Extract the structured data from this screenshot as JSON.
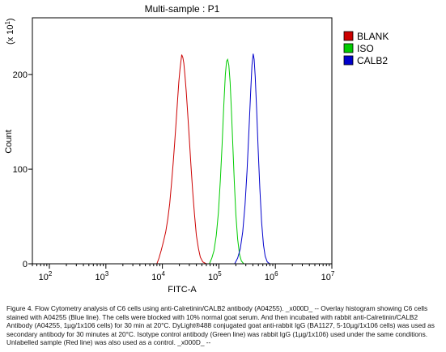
{
  "chart_data": {
    "type": "line",
    "title": "Multi-sample : P1",
    "xlabel": "FITC-A",
    "ylabel": "Count",
    "y_multiplier_label": "(x 10",
    "y_multiplier_exp": "1",
    "x_scale": "log",
    "x_range": [
      50,
      10000000
    ],
    "ylim": [
      0,
      260
    ],
    "x_ticks": [
      {
        "base": "10",
        "exp": "2",
        "value": 100
      },
      {
        "base": "10",
        "exp": "3",
        "value": 1000
      },
      {
        "base": "10",
        "exp": "4",
        "value": 10000
      },
      {
        "base": "10",
        "exp": "5",
        "value": 100000
      },
      {
        "base": "10",
        "exp": "6",
        "value": 1000000
      },
      {
        "base": "10",
        "exp": "7",
        "value": 10000000
      }
    ],
    "y_ticks": [
      0,
      100,
      200
    ],
    "legend_position": "top-right",
    "series": [
      {
        "name": "BLANK",
        "color": "#cc0000",
        "points": [
          [
            8000,
            0
          ],
          [
            8700,
            6
          ],
          [
            9500,
            14
          ],
          [
            10500,
            24
          ],
          [
            11500,
            34
          ],
          [
            12500,
            48
          ],
          [
            13500,
            64
          ],
          [
            14500,
            85
          ],
          [
            15500,
            106
          ],
          [
            16500,
            128
          ],
          [
            17500,
            150
          ],
          [
            18500,
            172
          ],
          [
            19500,
            192
          ],
          [
            20500,
            206
          ],
          [
            21500,
            216
          ],
          [
            22000,
            221
          ],
          [
            23000,
            218
          ],
          [
            24000,
            212
          ],
          [
            25000,
            200
          ],
          [
            26500,
            182
          ],
          [
            28000,
            160
          ],
          [
            30000,
            132
          ],
          [
            32000,
            104
          ],
          [
            34500,
            76
          ],
          [
            37000,
            52
          ],
          [
            40000,
            30
          ],
          [
            43500,
            16
          ],
          [
            47000,
            7
          ],
          [
            52000,
            2
          ],
          [
            60000,
            0
          ]
        ]
      },
      {
        "name": "ISO",
        "color": "#00cc00",
        "points": [
          [
            68000,
            0
          ],
          [
            75000,
            6
          ],
          [
            82000,
            14
          ],
          [
            90000,
            30
          ],
          [
            98000,
            54
          ],
          [
            106000,
            88
          ],
          [
            114000,
            126
          ],
          [
            122000,
            166
          ],
          [
            130000,
            200
          ],
          [
            137000,
            214
          ],
          [
            143000,
            216
          ],
          [
            150000,
            210
          ],
          [
            158000,
            192
          ],
          [
            167000,
            162
          ],
          [
            177000,
            124
          ],
          [
            188000,
            86
          ],
          [
            200000,
            52
          ],
          [
            215000,
            26
          ],
          [
            232000,
            10
          ],
          [
            250000,
            3
          ],
          [
            275000,
            0
          ]
        ]
      },
      {
        "name": "CALB2",
        "color": "#0000cc",
        "points": [
          [
            190000,
            0
          ],
          [
            215000,
            6
          ],
          [
            240000,
            16
          ],
          [
            265000,
            34
          ],
          [
            290000,
            62
          ],
          [
            315000,
            98
          ],
          [
            340000,
            140
          ],
          [
            365000,
            182
          ],
          [
            385000,
            210
          ],
          [
            405000,
            222
          ],
          [
            422000,
            216
          ],
          [
            440000,
            198
          ],
          [
            465000,
            164
          ],
          [
            495000,
            122
          ],
          [
            530000,
            80
          ],
          [
            570000,
            44
          ],
          [
            615000,
            20
          ],
          [
            660000,
            8
          ],
          [
            720000,
            2
          ],
          [
            800000,
            0
          ]
        ]
      }
    ],
    "caption": "Figure 4. Flow Cytometry analysis of C6 cells using anti-Calretinin/CALB2 antibody (A04255). _x000D_ -- Overlay histogram showing C6 cells stained with A04255 (Blue line). The cells were blocked with 10% normal goat serum. And then incubated with rabbit anti-Calretinin/CALB2 Antibody (A04255, 1µg/1x106 cells) for 30 min at 20°C. DyLight®488 conjugated goat anti-rabbit IgG (BA1127, 5-10µg/1x106 cells) was used as secondary antibody for 30 minutes at 20°C. Isotype control antibody (Green line) was rabbit IgG (1µg/1x106) used under the same conditions. Unlabelled sample (Red line) was also used as a control. _x000D_ --"
  }
}
